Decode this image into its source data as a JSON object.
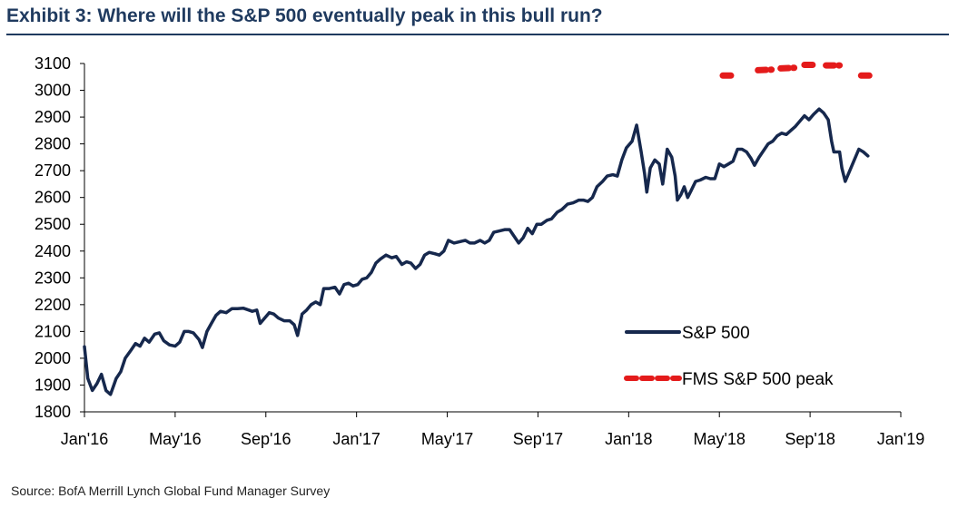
{
  "title": "Exhibit 3: Where will the S&P 500 eventually peak in this bull run?",
  "source": "Source:  BofA Merrill Lynch Global Fund Manager Survey",
  "colors": {
    "sp500": "#16284d",
    "fms": "#e41b1b",
    "title": "#1f3a5f"
  },
  "chart_data": {
    "type": "line",
    "title": "Exhibit 3: Where will the S&P 500 eventually peak in this bull run?",
    "xlabel": "",
    "ylabel": "",
    "ylim": [
      1800,
      3100
    ],
    "xlim": [
      0,
      36
    ],
    "y_ticks": [
      1800,
      1900,
      2000,
      2100,
      2200,
      2300,
      2400,
      2500,
      2600,
      2700,
      2800,
      2900,
      3000,
      3100
    ],
    "x_ticks": [
      {
        "pos": 0,
        "label": "Jan'16"
      },
      {
        "pos": 4,
        "label": "May'16"
      },
      {
        "pos": 8,
        "label": "Sep'16"
      },
      {
        "pos": 12,
        "label": "Jan'17"
      },
      {
        "pos": 16,
        "label": "May'17"
      },
      {
        "pos": 20,
        "label": "Sep'17"
      },
      {
        "pos": 24,
        "label": "Jan'18"
      },
      {
        "pos": 28,
        "label": "May'18"
      },
      {
        "pos": 32,
        "label": "Sep'18"
      },
      {
        "pos": 36,
        "label": "Jan'19"
      }
    ],
    "series": [
      {
        "name": "S&P 500",
        "style": "solid",
        "points": [
          [
            0.0,
            2043
          ],
          [
            0.15,
            1925
          ],
          [
            0.35,
            1880
          ],
          [
            0.55,
            1905
          ],
          [
            0.75,
            1940
          ],
          [
            0.95,
            1880
          ],
          [
            1.15,
            1865
          ],
          [
            1.4,
            1925
          ],
          [
            1.6,
            1950
          ],
          [
            1.8,
            2000
          ],
          [
            2.05,
            2030
          ],
          [
            2.25,
            2055
          ],
          [
            2.45,
            2045
          ],
          [
            2.65,
            2075
          ],
          [
            2.85,
            2060
          ],
          [
            3.1,
            2090
          ],
          [
            3.3,
            2095
          ],
          [
            3.5,
            2065
          ],
          [
            3.75,
            2050
          ],
          [
            4.0,
            2045
          ],
          [
            4.2,
            2060
          ],
          [
            4.4,
            2100
          ],
          [
            4.6,
            2100
          ],
          [
            4.8,
            2095
          ],
          [
            5.05,
            2070
          ],
          [
            5.2,
            2040
          ],
          [
            5.4,
            2100
          ],
          [
            5.6,
            2130
          ],
          [
            5.8,
            2160
          ],
          [
            6.0,
            2175
          ],
          [
            6.25,
            2170
          ],
          [
            6.5,
            2185
          ],
          [
            6.75,
            2185
          ],
          [
            7.0,
            2187
          ],
          [
            7.25,
            2180
          ],
          [
            7.4,
            2175
          ],
          [
            7.6,
            2180
          ],
          [
            7.75,
            2130
          ],
          [
            7.95,
            2150
          ],
          [
            8.15,
            2170
          ],
          [
            8.35,
            2165
          ],
          [
            8.55,
            2150
          ],
          [
            8.8,
            2140
          ],
          [
            9.05,
            2140
          ],
          [
            9.25,
            2125
          ],
          [
            9.4,
            2085
          ],
          [
            9.6,
            2165
          ],
          [
            9.8,
            2180
          ],
          [
            10.0,
            2200
          ],
          [
            10.2,
            2210
          ],
          [
            10.4,
            2200
          ],
          [
            10.55,
            2260
          ],
          [
            10.8,
            2260
          ],
          [
            11.05,
            2265
          ],
          [
            11.25,
            2240
          ],
          [
            11.45,
            2275
          ],
          [
            11.65,
            2280
          ],
          [
            11.85,
            2270
          ],
          [
            12.05,
            2275
          ],
          [
            12.25,
            2295
          ],
          [
            12.45,
            2300
          ],
          [
            12.65,
            2320
          ],
          [
            12.85,
            2355
          ],
          [
            13.05,
            2370
          ],
          [
            13.3,
            2385
          ],
          [
            13.55,
            2375
          ],
          [
            13.75,
            2380
          ],
          [
            14.0,
            2350
          ],
          [
            14.2,
            2360
          ],
          [
            14.4,
            2355
          ],
          [
            14.6,
            2335
          ],
          [
            14.8,
            2350
          ],
          [
            15.0,
            2385
          ],
          [
            15.2,
            2395
          ],
          [
            15.45,
            2390
          ],
          [
            15.65,
            2385
          ],
          [
            15.85,
            2400
          ],
          [
            16.05,
            2440
          ],
          [
            16.3,
            2430
          ],
          [
            16.55,
            2435
          ],
          [
            16.8,
            2440
          ],
          [
            17.0,
            2430
          ],
          [
            17.2,
            2430
          ],
          [
            17.45,
            2440
          ],
          [
            17.65,
            2430
          ],
          [
            17.85,
            2440
          ],
          [
            18.05,
            2470
          ],
          [
            18.3,
            2475
          ],
          [
            18.55,
            2480
          ],
          [
            18.75,
            2480
          ],
          [
            18.95,
            2455
          ],
          [
            19.15,
            2430
          ],
          [
            19.35,
            2450
          ],
          [
            19.55,
            2485
          ],
          [
            19.75,
            2465
          ],
          [
            19.95,
            2500
          ],
          [
            20.15,
            2500
          ],
          [
            20.4,
            2515
          ],
          [
            20.6,
            2520
          ],
          [
            20.85,
            2545
          ],
          [
            21.05,
            2555
          ],
          [
            21.3,
            2575
          ],
          [
            21.55,
            2580
          ],
          [
            21.8,
            2590
          ],
          [
            22.0,
            2590
          ],
          [
            22.2,
            2585
          ],
          [
            22.4,
            2600
          ],
          [
            22.6,
            2640
          ],
          [
            22.85,
            2660
          ],
          [
            23.05,
            2680
          ],
          [
            23.3,
            2685
          ],
          [
            23.5,
            2680
          ],
          [
            23.7,
            2740
          ],
          [
            23.9,
            2785
          ],
          [
            24.15,
            2810
          ],
          [
            24.35,
            2870
          ],
          [
            24.55,
            2770
          ],
          [
            24.7,
            2690
          ],
          [
            24.8,
            2620
          ],
          [
            24.95,
            2710
          ],
          [
            25.15,
            2740
          ],
          [
            25.35,
            2725
          ],
          [
            25.5,
            2650
          ],
          [
            25.7,
            2780
          ],
          [
            25.9,
            2750
          ],
          [
            26.05,
            2680
          ],
          [
            26.15,
            2590
          ],
          [
            26.3,
            2610
          ],
          [
            26.45,
            2640
          ],
          [
            26.6,
            2600
          ],
          [
            26.75,
            2625
          ],
          [
            26.95,
            2660
          ],
          [
            27.15,
            2665
          ],
          [
            27.4,
            2675
          ],
          [
            27.6,
            2670
          ],
          [
            27.8,
            2670
          ],
          [
            28.0,
            2725
          ],
          [
            28.2,
            2715
          ],
          [
            28.4,
            2725
          ],
          [
            28.6,
            2735
          ],
          [
            28.8,
            2780
          ],
          [
            29.0,
            2780
          ],
          [
            29.2,
            2770
          ],
          [
            29.4,
            2745
          ],
          [
            29.55,
            2720
          ],
          [
            29.75,
            2750
          ],
          [
            29.95,
            2775
          ],
          [
            30.15,
            2800
          ],
          [
            30.35,
            2810
          ],
          [
            30.55,
            2830
          ],
          [
            30.75,
            2840
          ],
          [
            30.95,
            2835
          ],
          [
            31.15,
            2850
          ],
          [
            31.35,
            2865
          ],
          [
            31.55,
            2885
          ],
          [
            31.75,
            2905
          ],
          [
            31.95,
            2890
          ],
          [
            32.15,
            2910
          ],
          [
            32.4,
            2930
          ],
          [
            32.6,
            2915
          ],
          [
            32.8,
            2890
          ],
          [
            32.95,
            2810
          ],
          [
            33.05,
            2770
          ],
          [
            33.3,
            2770
          ],
          [
            33.4,
            2710
          ],
          [
            33.55,
            2660
          ],
          [
            33.75,
            2700
          ],
          [
            33.95,
            2740
          ],
          [
            34.15,
            2780
          ],
          [
            34.35,
            2770
          ],
          [
            34.55,
            2755
          ]
        ]
      },
      {
        "name": "FMS S&P 500 peak",
        "style": "dashed",
        "segments": [
          [
            [
              28.15,
              3055
            ],
            [
              28.7,
              3055
            ]
          ],
          [
            [
              29.7,
              3075
            ],
            [
              30.3,
              3077
            ]
          ],
          [
            [
              30.7,
              3082
            ],
            [
              31.3,
              3084
            ]
          ],
          [
            [
              31.75,
              3095
            ],
            [
              32.25,
              3095
            ]
          ],
          [
            [
              32.7,
              3093
            ],
            [
              33.3,
              3093
            ]
          ],
          [
            [
              34.25,
              3055
            ],
            [
              34.8,
              3055
            ]
          ]
        ]
      }
    ],
    "legend": {
      "position": "bottom-right",
      "items": [
        {
          "label": "S&P 500",
          "style": "solid"
        },
        {
          "label": "FMS S&P 500 peak",
          "style": "dashed"
        }
      ]
    }
  }
}
